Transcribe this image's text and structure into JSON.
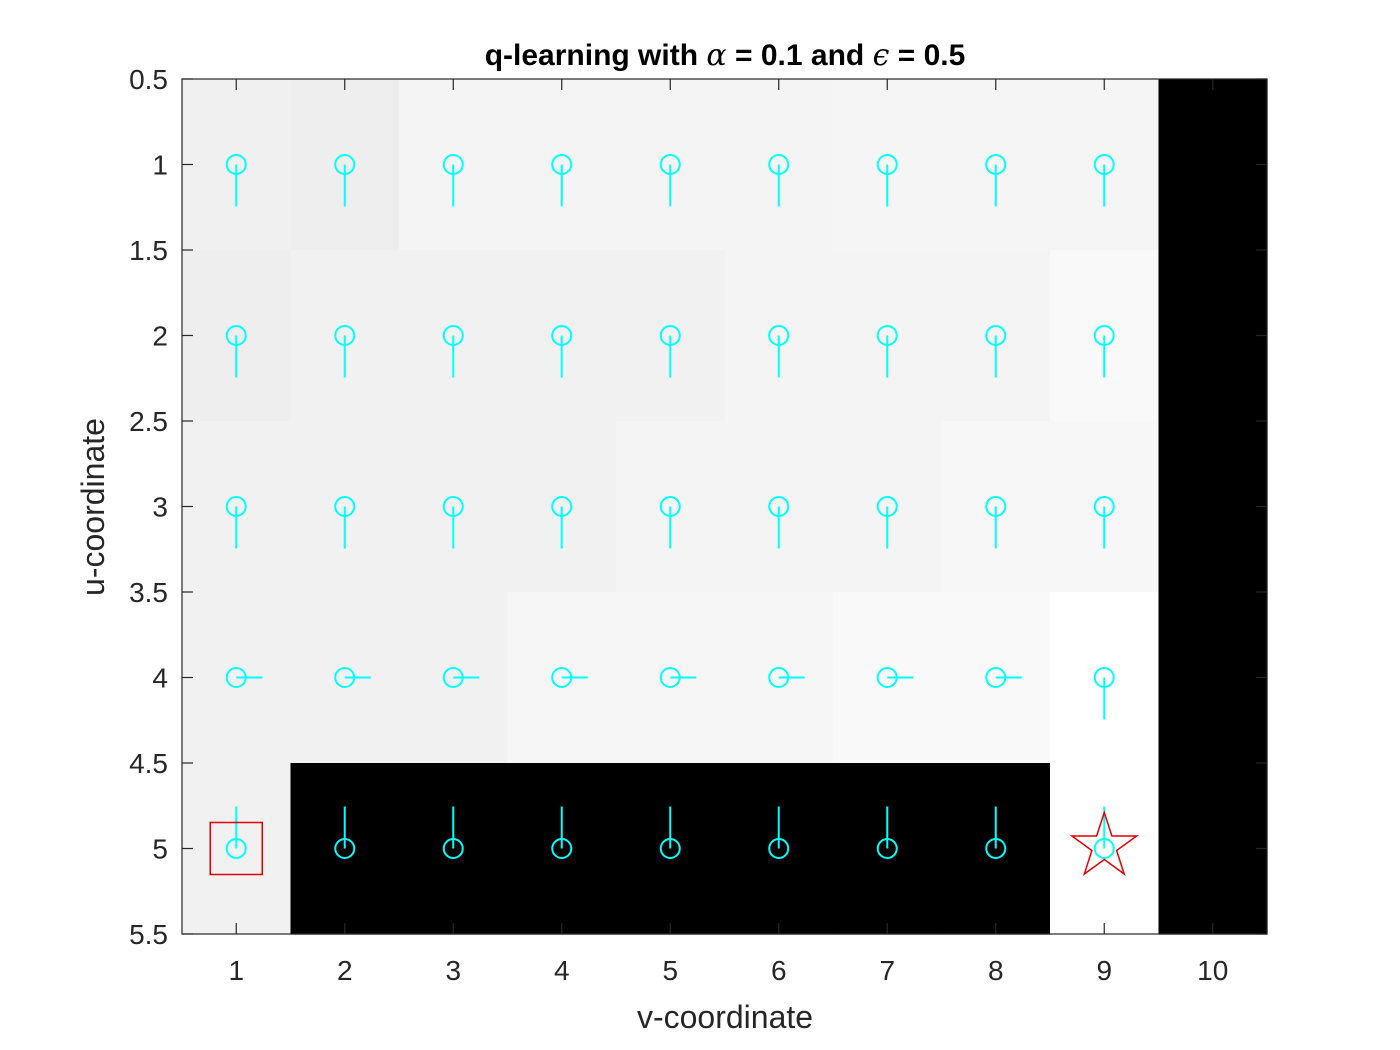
{
  "chart_data": {
    "type": "heatmap",
    "title": "q-learning with α = 0.1 and ϵ = 0.5",
    "title_parts": {
      "prefix": "q-learning with ",
      "alpha_symbol": "α",
      "alpha_text": " = 0.1 and ",
      "epsilon_symbol": "ϵ",
      "epsilon_text": " = 0.5"
    },
    "xlabel": "v-coordinate",
    "ylabel": "u-coordinate",
    "xlim": [
      0.5,
      10.5
    ],
    "ylim": [
      0.5,
      5.5
    ],
    "y_reversed": true,
    "grid": false,
    "x_ticks": [
      "1",
      "2",
      "3",
      "4",
      "5",
      "6",
      "7",
      "8",
      "9",
      "10"
    ],
    "y_ticks": [
      "0.5",
      "1",
      "1.5",
      "2",
      "2.5",
      "3",
      "3.5",
      "4",
      "4.5",
      "5",
      "5.5"
    ],
    "colormap": "gray",
    "cells": [
      [
        0.94,
        0.935,
        0.955,
        0.955,
        0.955,
        0.955,
        0.962,
        0.962,
        0.962,
        0.0
      ],
      [
        0.935,
        0.945,
        0.945,
        0.945,
        0.945,
        0.955,
        0.955,
        0.955,
        0.975,
        0.0
      ],
      [
        0.945,
        0.945,
        0.945,
        0.945,
        0.955,
        0.955,
        0.955,
        0.97,
        0.97,
        0.0
      ],
      [
        0.945,
        0.945,
        0.945,
        0.965,
        0.965,
        0.965,
        0.975,
        0.975,
        1.0,
        0.0
      ],
      [
        0.945,
        0.0,
        0.0,
        0.0,
        0.0,
        0.0,
        0.0,
        0.0,
        1.0,
        0.0
      ]
    ],
    "policy": [
      [
        "down",
        "down",
        "down",
        "down",
        "down",
        "down",
        "down",
        "down",
        "down"
      ],
      [
        "down",
        "down",
        "down",
        "down",
        "down",
        "down",
        "down",
        "down",
        "down"
      ],
      [
        "down",
        "down",
        "down",
        "down",
        "down",
        "down",
        "down",
        "down",
        "down"
      ],
      [
        "right",
        "right",
        "right",
        "right",
        "right",
        "right",
        "right",
        "right",
        "down"
      ],
      [
        "up",
        "up",
        "up",
        "up",
        "up",
        "up",
        "up",
        "up",
        "up"
      ]
    ],
    "arrow_color": "#00ffff",
    "start": {
      "u": 5,
      "v": 1,
      "marker": "square",
      "color": "#e00000"
    },
    "goal": {
      "u": 5,
      "v": 9,
      "marker": "star",
      "color": "#e00000"
    }
  }
}
